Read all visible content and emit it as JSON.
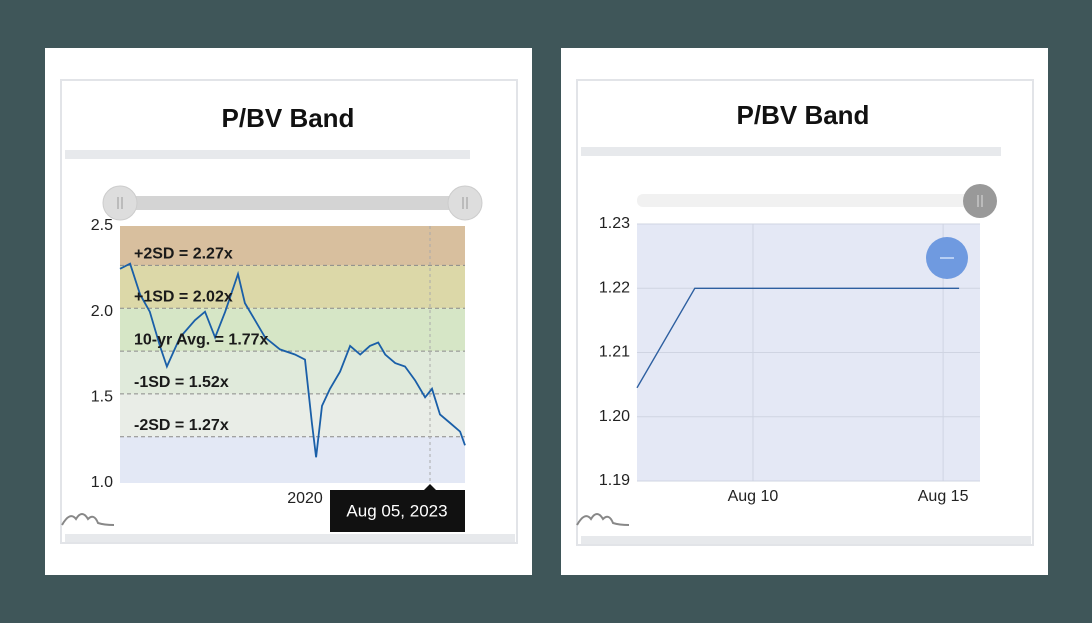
{
  "chart_data": [
    {
      "type": "line",
      "title": "P/BV Band",
      "x": [
        2014.67,
        2014.96,
        2015.25,
        2015.53,
        2015.82,
        2016.02,
        2016.4,
        2016.83,
        2017.12,
        2017.41,
        2017.7,
        2018.07,
        2018.27,
        2018.56,
        2018.85,
        2019.28,
        2019.71,
        2020.0,
        2020.2,
        2020.32,
        2020.49,
        2020.72,
        2021.01,
        2021.3,
        2021.59,
        2021.87,
        2022.11,
        2022.31,
        2022.6,
        2022.88,
        2023.17,
        2023.46,
        2023.66,
        2023.89,
        2024.18,
        2024.47,
        2024.61
      ],
      "series": [
        {
          "color": "#1a5fa8",
          "values": [
            2.25,
            2.28,
            2.1,
            2.0,
            1.8,
            1.68,
            1.85,
            1.95,
            2.0,
            1.85,
            2.0,
            2.22,
            2.05,
            1.95,
            1.85,
            1.78,
            1.75,
            1.72,
            1.35,
            1.15,
            1.45,
            1.55,
            1.65,
            1.8,
            1.75,
            1.8,
            1.82,
            1.75,
            1.7,
            1.68,
            1.6,
            1.5,
            1.55,
            1.4,
            1.35,
            1.3,
            1.22
          ]
        }
      ],
      "xlim": [
        2014.67,
        2024.61
      ],
      "xticks": [
        2020
      ],
      "ylim": [
        1,
        2.5
      ],
      "yticks": [
        {
          "value": 1,
          "label": "1.0"
        },
        {
          "value": 1.5,
          "label": "1.5"
        },
        {
          "value": 2,
          "label": "2.0"
        },
        {
          "value": 2.5,
          "label": "2.5"
        }
      ],
      "bands": [
        {
          "label": "+2SD = 2.27x",
          "value": 2.27
        },
        {
          "label": "+1SD = 2.02x",
          "value": 2.02
        },
        {
          "label": "10-yr Avg. = 1.77x",
          "value": 1.77
        },
        {
          "label": "-1SD = 1.52x",
          "value": 1.52
        },
        {
          "label": "-2SD = 1.27x",
          "value": 1.27
        }
      ],
      "band_colors": [
        "#d8bf9e",
        "#dcd8a8",
        "#d6e6c6",
        "#e0eadb",
        "#e9ede7",
        "#e3e8f5"
      ],
      "tooltip": "Aug 05, 2023"
    },
    {
      "type": "line",
      "title": "P/BV Band",
      "x": [
        6.95,
        8.47,
        15.42
      ],
      "series": [
        {
          "color": "#2d5fa0",
          "values": [
            1.2045,
            1.22,
            1.22
          ]
        }
      ],
      "xlim": [
        6.95,
        15.97
      ],
      "xticks": [
        {
          "value": 10,
          "label": "Aug 10"
        },
        {
          "value": 15,
          "label": "Aug 15"
        }
      ],
      "ylim": [
        1.19,
        1.23
      ],
      "yticks": [
        1.19,
        {
          "value": 1.2,
          "label": "1.20"
        },
        1.21,
        1.22,
        1.23
      ],
      "grid": true,
      "plot_color": "#e4e8f5"
    }
  ]
}
